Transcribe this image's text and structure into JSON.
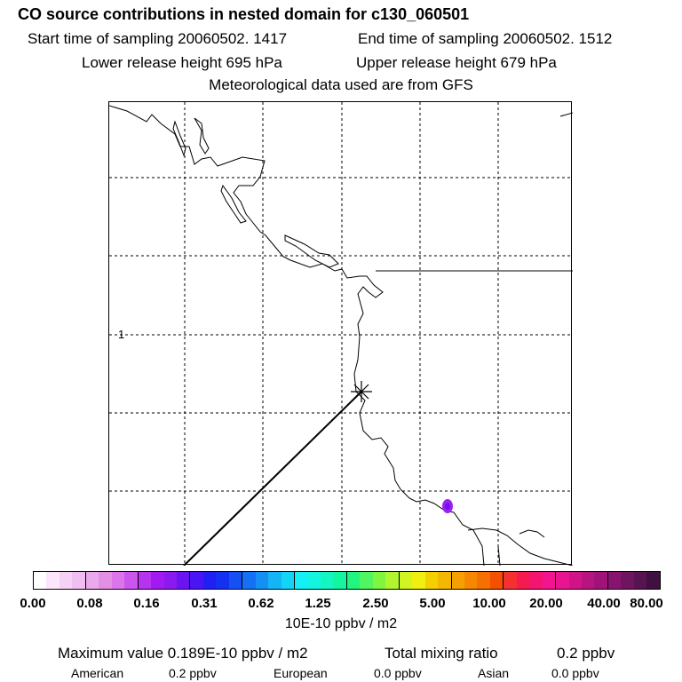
{
  "header": {
    "title": "CO  source contributions in nested domain for c130_060501",
    "start_time": "Start time of sampling 20060502.  1417",
    "end_time": "End time of sampling 20060502.  1512",
    "lower_release": "Lower release height  695 hPa",
    "upper_release": "Upper release height  679 hPa",
    "met_data": "Meteorological data used are from GFS"
  },
  "map": {
    "tick_label": "1",
    "colors": {
      "coast": "#000000",
      "grid": "#000000",
      "hotspot": "#a020f0"
    }
  },
  "legend": {
    "colors": [
      "#ffffff",
      "#fbe6fb",
      "#f5d2f5",
      "#f0bef0",
      "#eaa9ea",
      "#e38fe3",
      "#db75eb",
      "#cc55ee",
      "#b833f0",
      "#a11af2",
      "#8a1af0",
      "#6a14f2",
      "#4a14f5",
      "#2020f5",
      "#1430f0",
      "#1450f5",
      "#1470f5",
      "#1490f5",
      "#14b4f5",
      "#14d4f5",
      "#14f0f5",
      "#14f5e0",
      "#14f5c0",
      "#14f5a0",
      "#20f580",
      "#50f560",
      "#80f540",
      "#b0f530",
      "#d0f520",
      "#f0f010",
      "#f5d000",
      "#f5b800",
      "#f5a000",
      "#f58800",
      "#f57000",
      "#f55000",
      "#f53030",
      "#f51a50",
      "#f51470",
      "#f51490",
      "#e81490",
      "#d01488",
      "#b81480",
      "#a0147a",
      "#881470",
      "#701460",
      "#581450",
      "#401040"
    ],
    "ticks": [
      "0.00",
      "0.08",
      "0.16",
      "0.31",
      "0.62",
      "1.25",
      "2.50",
      "5.00",
      "10.00",
      "20.00",
      "40.00",
      "80.00"
    ],
    "units": "10E-10 ppbv / m2"
  },
  "stats": {
    "max_value": "Maximum value  0.189E-10 ppbv / m2",
    "total_mixing_label": "Total mixing ratio",
    "total_mixing_value": "0.2 ppbv",
    "american_label": "American",
    "american_value": "0.2 ppbv",
    "european_label": "European",
    "european_value": "0.0 ppbv",
    "asian_label": "Asian",
    "asian_value": "0.0 ppbv"
  }
}
